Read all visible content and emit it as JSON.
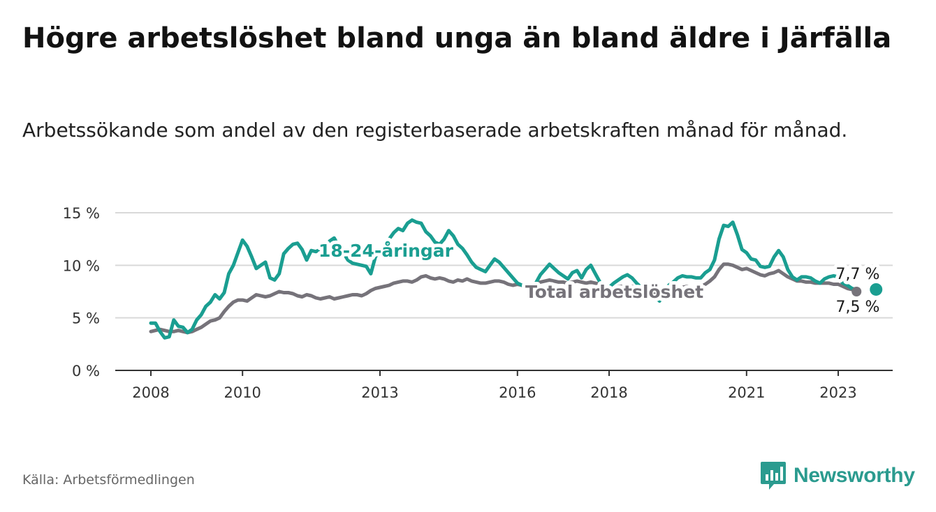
{
  "title": "Högre arbetslöshet bland unga än bland äldre i Järfälla",
  "subtitle": "Arbetssökande som andel av den registerbaserade arbetskraften månad för månad.",
  "source": "Källa: Arbetsförmedlingen",
  "brand": "Newsworthy",
  "colors": {
    "youth": "#1a9e91",
    "total": "#76737a",
    "grid": "#d9d9d9",
    "axis": "#333333",
    "brand": "#2b9b8f"
  },
  "chart_data": {
    "type": "line",
    "title": "Högre arbetslöshet bland unga än bland äldre i Järfälla",
    "xlabel": "",
    "ylabel": "",
    "xlim": [
      2007.7,
      2024.3
    ],
    "ylim": [
      0,
      15
    ],
    "y_ticks": [
      0,
      5,
      10,
      15
    ],
    "y_tick_labels": [
      "0 %",
      "5 %",
      "10 %",
      "15 %"
    ],
    "x_ticks": [
      2008,
      2010,
      2013,
      2016,
      2018,
      2021,
      2023
    ],
    "x_tick_labels": [
      "2008",
      "2010",
      "2013",
      "2016",
      "2018",
      "2021",
      "2023"
    ],
    "series": [
      {
        "name": "18-24-åringar",
        "label": "18-24-åringar",
        "color": "#1a9e91",
        "x": [
          2008.0,
          2008.1,
          2008.2,
          2008.3,
          2008.4,
          2008.5,
          2008.6,
          2008.7,
          2008.8,
          2008.9,
          2009.0,
          2009.1,
          2009.2,
          2009.3,
          2009.4,
          2009.5,
          2009.6,
          2009.7,
          2009.8,
          2009.9,
          2010.0,
          2010.1,
          2010.2,
          2010.3,
          2010.4,
          2010.5,
          2010.6,
          2010.7,
          2010.8,
          2010.9,
          2011.0,
          2011.1,
          2011.2,
          2011.3,
          2011.4,
          2011.5,
          2011.6,
          2011.7,
          2011.8,
          2011.9,
          2012.0,
          2012.1,
          2012.2,
          2012.3,
          2012.4,
          2012.5,
          2012.6,
          2012.7,
          2012.8,
          2012.9,
          2013.0,
          2013.1,
          2013.2,
          2013.3,
          2013.4,
          2013.5,
          2013.6,
          2013.7,
          2013.8,
          2013.9,
          2014.0,
          2014.1,
          2014.2,
          2014.3,
          2014.4,
          2014.5,
          2014.6,
          2014.7,
          2014.8,
          2014.9,
          2015.0,
          2015.1,
          2015.2,
          2015.3,
          2015.4,
          2015.5,
          2015.6,
          2015.7,
          2015.8,
          2015.9,
          2016.0,
          2016.1,
          2016.2,
          2016.3,
          2016.4,
          2016.5,
          2016.6,
          2016.7,
          2016.8,
          2016.9,
          2017.0,
          2017.1,
          2017.2,
          2017.3,
          2017.4,
          2017.5,
          2017.6,
          2017.7,
          2017.8,
          2017.9,
          2018.0,
          2018.1,
          2018.2,
          2018.3,
          2018.4,
          2018.5,
          2018.6,
          2018.7,
          2018.8,
          2018.9,
          2019.0,
          2019.1,
          2019.2,
          2019.3,
          2019.4,
          2019.5,
          2019.6,
          2019.7,
          2019.8,
          2019.9,
          2020.0,
          2020.1,
          2020.2,
          2020.3,
          2020.4,
          2020.5,
          2020.6,
          2020.7,
          2020.8,
          2020.9,
          2021.0,
          2021.1,
          2021.2,
          2021.3,
          2021.4,
          2021.5,
          2021.6,
          2021.7,
          2021.8,
          2021.9,
          2022.0,
          2022.1,
          2022.2,
          2022.3,
          2022.4,
          2022.5,
          2022.6,
          2022.7,
          2022.8,
          2022.9,
          2023.0,
          2023.1,
          2023.2,
          2023.3,
          2023.4
        ],
        "values": [
          4.5,
          4.5,
          3.7,
          3.1,
          3.2,
          4.8,
          4.2,
          4.1,
          3.6,
          3.9,
          4.8,
          5.3,
          6.1,
          6.5,
          7.2,
          6.8,
          7.4,
          9.2,
          10.0,
          11.2,
          12.4,
          11.8,
          10.8,
          9.7,
          10.0,
          10.3,
          8.8,
          8.6,
          9.2,
          11.1,
          11.6,
          12.0,
          12.1,
          11.5,
          10.5,
          11.4,
          11.3,
          11.5,
          11.4,
          12.3,
          12.6,
          11.8,
          11.2,
          10.5,
          10.2,
          10.1,
          10.0,
          9.9,
          9.2,
          10.8,
          11.4,
          12.0,
          12.5,
          13.1,
          13.5,
          13.3,
          14.0,
          14.3,
          14.1,
          14.0,
          13.2,
          12.8,
          12.2,
          12.0,
          12.5,
          13.3,
          12.8,
          12.0,
          11.6,
          11.0,
          10.3,
          9.8,
          9.6,
          9.4,
          10.0,
          10.6,
          10.3,
          9.8,
          9.3,
          8.8,
          8.3,
          8.1,
          7.8,
          7.9,
          8.3,
          9.1,
          9.6,
          10.1,
          9.7,
          9.3,
          9.0,
          8.7,
          9.3,
          9.5,
          8.8,
          9.6,
          10.0,
          9.2,
          8.4,
          8.1,
          7.9,
          8.3,
          8.6,
          8.9,
          9.1,
          8.8,
          8.3,
          7.9,
          7.6,
          7.3,
          7.0,
          6.6,
          7.4,
          8.1,
          8.4,
          8.8,
          9.0,
          8.9,
          8.9,
          8.8,
          8.8,
          9.3,
          9.6,
          10.5,
          12.5,
          13.8,
          13.7,
          14.1,
          12.9,
          11.5,
          11.2,
          10.6,
          10.5,
          9.9,
          9.8,
          9.9,
          10.8,
          11.4,
          10.8,
          9.6,
          8.9,
          8.6,
          8.9,
          8.9,
          8.8,
          8.5,
          8.3,
          8.7,
          8.9,
          9.0,
          8.9,
          8.3,
          8.1,
          7.8,
          7.7
        ]
      },
      {
        "name": "Total arbetslöshet",
        "label": "Total arbetslöshet",
        "color": "#76737a",
        "x": [
          2008.0,
          2008.1,
          2008.2,
          2008.3,
          2008.4,
          2008.5,
          2008.6,
          2008.7,
          2008.8,
          2008.9,
          2009.0,
          2009.1,
          2009.2,
          2009.3,
          2009.4,
          2009.5,
          2009.6,
          2009.7,
          2009.8,
          2009.9,
          2010.0,
          2010.1,
          2010.2,
          2010.3,
          2010.4,
          2010.5,
          2010.6,
          2010.7,
          2010.8,
          2010.9,
          2011.0,
          2011.1,
          2011.2,
          2011.3,
          2011.4,
          2011.5,
          2011.6,
          2011.7,
          2011.8,
          2011.9,
          2012.0,
          2012.1,
          2012.2,
          2012.3,
          2012.4,
          2012.5,
          2012.6,
          2012.7,
          2012.8,
          2012.9,
          2013.0,
          2013.1,
          2013.2,
          2013.3,
          2013.4,
          2013.5,
          2013.6,
          2013.7,
          2013.8,
          2013.9,
          2014.0,
          2014.1,
          2014.2,
          2014.3,
          2014.4,
          2014.5,
          2014.6,
          2014.7,
          2014.8,
          2014.9,
          2015.0,
          2015.1,
          2015.2,
          2015.3,
          2015.4,
          2015.5,
          2015.6,
          2015.7,
          2015.8,
          2015.9,
          2016.0,
          2016.1,
          2016.2,
          2016.3,
          2016.4,
          2016.5,
          2016.6,
          2016.7,
          2016.8,
          2016.9,
          2017.0,
          2017.1,
          2017.2,
          2017.3,
          2017.4,
          2017.5,
          2017.6,
          2017.7,
          2017.8,
          2017.9,
          2018.0,
          2018.1,
          2018.2,
          2018.3,
          2018.4,
          2018.5,
          2018.6,
          2018.7,
          2018.8,
          2018.9,
          2019.0,
          2019.1,
          2019.2,
          2019.3,
          2019.4,
          2019.5,
          2019.6,
          2019.7,
          2019.8,
          2019.9,
          2020.0,
          2020.1,
          2020.2,
          2020.3,
          2020.4,
          2020.5,
          2020.6,
          2020.7,
          2020.8,
          2020.9,
          2021.0,
          2021.1,
          2021.2,
          2021.3,
          2021.4,
          2021.5,
          2021.6,
          2021.7,
          2021.8,
          2021.9,
          2022.0,
          2022.1,
          2022.2,
          2022.3,
          2022.4,
          2022.5,
          2022.6,
          2022.7,
          2022.8,
          2022.9,
          2023.0,
          2023.1,
          2023.2,
          2023.3,
          2023.4
        ],
        "values": [
          3.7,
          3.8,
          3.9,
          3.8,
          3.7,
          3.7,
          3.8,
          3.7,
          3.6,
          3.7,
          3.9,
          4.1,
          4.4,
          4.7,
          4.8,
          5.0,
          5.6,
          6.1,
          6.5,
          6.7,
          6.7,
          6.6,
          6.9,
          7.2,
          7.1,
          7.0,
          7.1,
          7.3,
          7.5,
          7.4,
          7.4,
          7.3,
          7.1,
          7.0,
          7.2,
          7.1,
          6.9,
          6.8,
          6.9,
          7.0,
          6.8,
          6.9,
          7.0,
          7.1,
          7.2,
          7.2,
          7.1,
          7.3,
          7.6,
          7.8,
          7.9,
          8.0,
          8.1,
          8.3,
          8.4,
          8.5,
          8.5,
          8.4,
          8.6,
          8.9,
          9.0,
          8.8,
          8.7,
          8.8,
          8.7,
          8.5,
          8.4,
          8.6,
          8.5,
          8.7,
          8.5,
          8.4,
          8.3,
          8.3,
          8.4,
          8.5,
          8.5,
          8.4,
          8.2,
          8.1,
          8.2,
          8.1,
          8.0,
          8.1,
          8.3,
          8.4,
          8.5,
          8.6,
          8.5,
          8.4,
          8.4,
          8.3,
          8.4,
          8.5,
          8.4,
          8.3,
          8.4,
          8.3,
          8.2,
          8.0,
          7.9,
          7.9,
          8.0,
          8.0,
          8.1,
          8.0,
          7.8,
          7.7,
          7.6,
          7.5,
          7.4,
          7.3,
          7.4,
          7.5,
          7.6,
          7.8,
          7.9,
          8.0,
          7.9,
          7.9,
          8.0,
          8.2,
          8.5,
          8.9,
          9.6,
          10.1,
          10.1,
          10.0,
          9.8,
          9.6,
          9.7,
          9.5,
          9.3,
          9.1,
          9.0,
          9.2,
          9.3,
          9.5,
          9.2,
          8.9,
          8.7,
          8.5,
          8.5,
          8.4,
          8.4,
          8.3,
          8.3,
          8.3,
          8.3,
          8.2,
          8.2,
          8.0,
          7.8,
          7.7,
          7.5
        ]
      }
    ],
    "end_labels": {
      "youth": "7,7 %",
      "total": "7,5 %"
    }
  }
}
